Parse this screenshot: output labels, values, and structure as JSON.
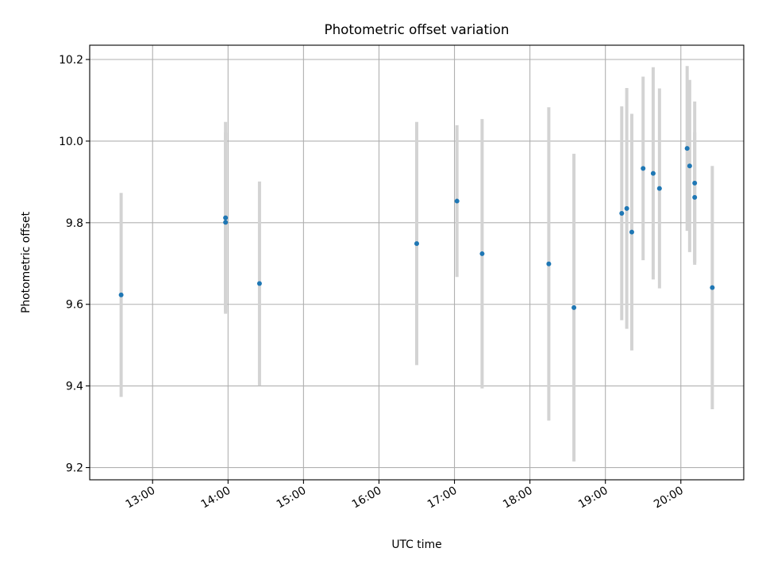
{
  "chart_data": {
    "type": "scatter",
    "title": "Photometric offset variation",
    "xlabel": "UTC time",
    "ylabel": "Photometric offset",
    "grid": true,
    "xlim": [
      "12:10",
      "20:50"
    ],
    "ylim": [
      9.17,
      10.235
    ],
    "x_ticks": [
      "13:00",
      "14:00",
      "15:00",
      "16:00",
      "17:00",
      "18:00",
      "19:00",
      "20:00"
    ],
    "y_ticks": [
      "9.2",
      "9.4",
      "9.6",
      "9.8",
      "10.0",
      "10.2"
    ],
    "point_color": "#1f77b4",
    "errorbar_color": "#d3d3d3",
    "points": [
      {
        "x": "12:35",
        "y": 9.623,
        "err": 0.25
      },
      {
        "x": "13:58",
        "y": 9.812,
        "err": 0.235
      },
      {
        "x": "13:58",
        "y": 9.801,
        "err": 0.22
      },
      {
        "x": "14:25",
        "y": 9.651,
        "err": 0.25
      },
      {
        "x": "16:30",
        "y": 9.749,
        "err": 0.298
      },
      {
        "x": "17:02",
        "y": 9.853,
        "err": 0.186
      },
      {
        "x": "17:22",
        "y": 9.724,
        "err": 0.33
      },
      {
        "x": "18:15",
        "y": 9.699,
        "err": 0.384
      },
      {
        "x": "18:35",
        "y": 9.592,
        "err": 0.377
      },
      {
        "x": "19:13",
        "y": 9.823,
        "err": 0.262
      },
      {
        "x": "19:17",
        "y": 9.835,
        "err": 0.295
      },
      {
        "x": "19:21",
        "y": 9.777,
        "err": 0.29
      },
      {
        "x": "19:30",
        "y": 9.933,
        "err": 0.225
      },
      {
        "x": "19:38",
        "y": 9.921,
        "err": 0.26
      },
      {
        "x": "19:43",
        "y": 9.884,
        "err": 0.245
      },
      {
        "x": "20:05",
        "y": 9.982,
        "err": 0.202
      },
      {
        "x": "20:07",
        "y": 9.939,
        "err": 0.211
      },
      {
        "x": "20:11",
        "y": 9.897,
        "err": 0.2
      },
      {
        "x": "20:11",
        "y": 9.862,
        "err": 0.16
      },
      {
        "x": "20:25",
        "y": 9.641,
        "err": 0.298
      }
    ]
  }
}
